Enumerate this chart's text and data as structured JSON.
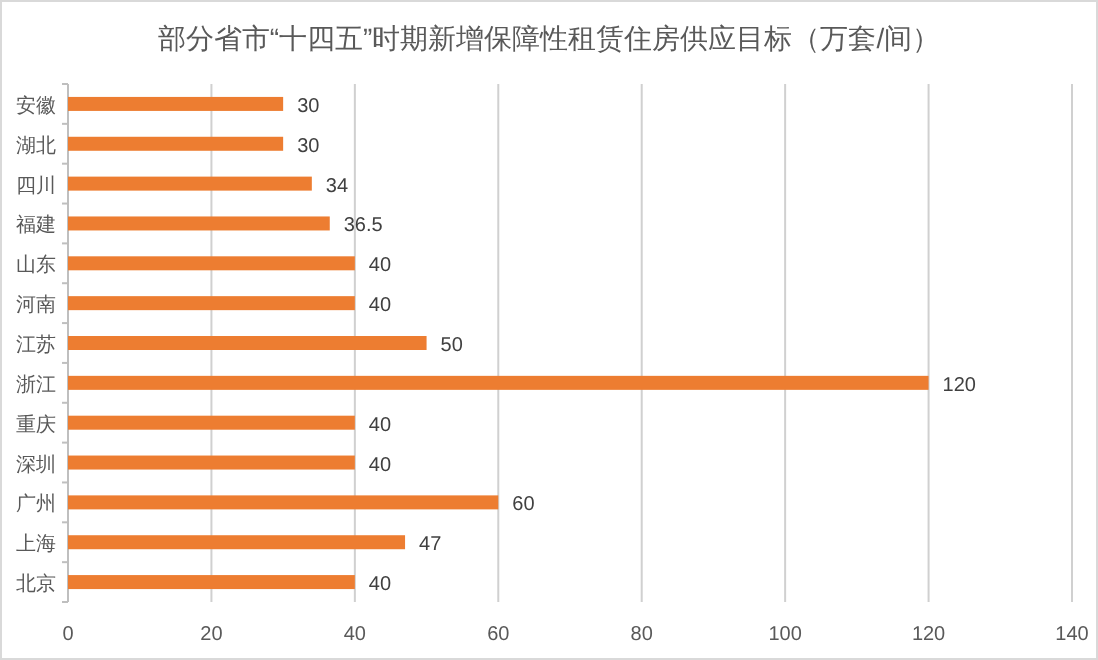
{
  "chart_data": {
    "type": "bar",
    "orientation": "horizontal",
    "title": "部分省市“十四五”时期新增保障性租赁住房供应目标（万套/间）",
    "categories": [
      "安徽",
      "湖北",
      "四川",
      "福建",
      "山东",
      "河南",
      "江苏",
      "浙江",
      "重庆",
      "深圳",
      "广州",
      "上海",
      "北京"
    ],
    "values": [
      30,
      30,
      34,
      36.5,
      40,
      40,
      50,
      120,
      40,
      40,
      60,
      47,
      40
    ],
    "color": "#ed7d31",
    "data_labels": true,
    "xlim": [
      0,
      140
    ],
    "xticks": [
      0,
      20,
      40,
      60,
      80,
      100,
      120,
      140
    ],
    "grid": "x"
  }
}
